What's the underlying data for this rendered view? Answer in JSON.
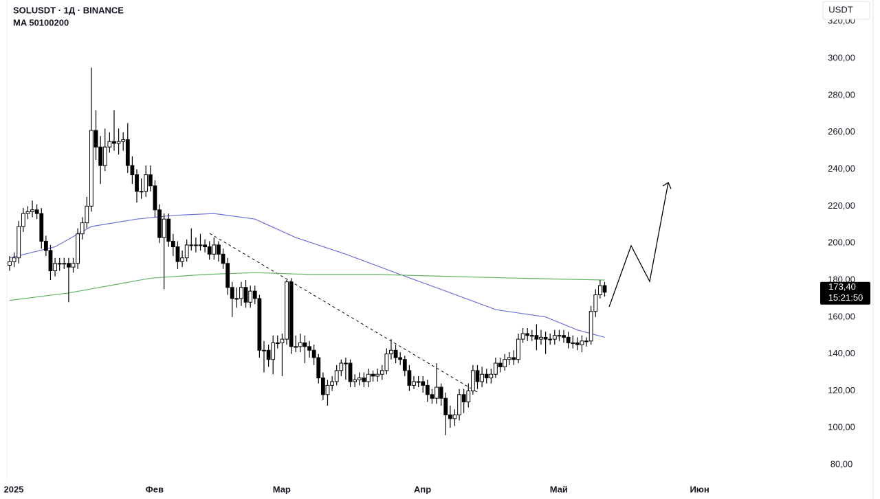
{
  "chart_data": {
    "type": "candlestick",
    "title": "SOLUSDT · 1Д · BINANCE",
    "subtitle": "MA 50100200",
    "currency": "USDT",
    "x": [
      0,
      1,
      2,
      3,
      4,
      5,
      6,
      7,
      8,
      9,
      10,
      11,
      12,
      13,
      14,
      15,
      16,
      17,
      18,
      19,
      20,
      21,
      22,
      23,
      24,
      25,
      26,
      27,
      28,
      29,
      30,
      31,
      32,
      33,
      34,
      35,
      36,
      37,
      38,
      39,
      40,
      41,
      42,
      43,
      44,
      45,
      46,
      47,
      48,
      49,
      50,
      51,
      52,
      53,
      54,
      55,
      56,
      57,
      58,
      59,
      60,
      61,
      62,
      63,
      64,
      65,
      66,
      67,
      68,
      69,
      70,
      71,
      72,
      73,
      74,
      75,
      76,
      77,
      78,
      79,
      80,
      81,
      82,
      83,
      84,
      85,
      86,
      87,
      88,
      89,
      90,
      91,
      92,
      93,
      94,
      95,
      96,
      97,
      98,
      99,
      100,
      101,
      102,
      103,
      104,
      105,
      106,
      107,
      108,
      109,
      110,
      111,
      112,
      113,
      114,
      115,
      116,
      117,
      118,
      119,
      120,
      121,
      122,
      123,
      124,
      125,
      126,
      127,
      128,
      129,
      130,
      131
    ],
    "open": [
      188,
      190,
      192,
      209,
      216,
      217,
      218,
      216,
      201,
      196,
      185,
      189,
      189,
      189,
      187,
      189,
      205,
      211,
      220,
      261,
      252,
      242,
      252,
      255,
      254,
      255,
      256,
      242,
      237,
      228,
      228,
      237,
      231,
      218,
      203,
      213,
      201,
      198,
      190,
      192,
      199,
      199,
      199,
      199,
      198,
      194,
      199,
      194,
      189,
      176,
      170,
      170,
      176,
      168,
      174,
      170,
      142,
      142,
      137,
      146,
      146,
      148,
      179,
      144,
      144,
      146,
      144,
      142,
      138,
      127,
      118,
      123,
      125,
      131,
      135,
      135,
      125,
      126,
      127,
      125,
      129,
      128,
      129,
      131,
      140,
      142,
      138,
      137,
      131,
      123,
      125,
      125,
      123,
      118,
      116,
      122,
      116,
      107,
      105,
      107,
      118,
      114,
      120,
      131,
      125,
      129,
      127,
      129,
      135,
      133,
      137,
      138,
      137,
      148,
      151,
      150,
      150,
      148,
      149,
      148,
      148,
      150,
      150,
      149,
      146,
      146,
      145,
      147,
      147,
      163,
      172,
      177
    ],
    "high": [
      193,
      195,
      212,
      219,
      220,
      223,
      221,
      219,
      204,
      199,
      192,
      192,
      192,
      192,
      192,
      208,
      214,
      225,
      295,
      272,
      258,
      262,
      260,
      272,
      262,
      260,
      265,
      247,
      240,
      235,
      242,
      242,
      234,
      221,
      216,
      216,
      205,
      201,
      196,
      202,
      208,
      203,
      205,
      202,
      201,
      203,
      201,
      197,
      192,
      179,
      176,
      179,
      180,
      177,
      177,
      172,
      147,
      145,
      150,
      150,
      151,
      180,
      181,
      150,
      151,
      150,
      147,
      145,
      140,
      130,
      126,
      128,
      134,
      137,
      138,
      137,
      129,
      130,
      130,
      132,
      131,
      132,
      134,
      143,
      148,
      145,
      141,
      139,
      134,
      128,
      128,
      128,
      126,
      121,
      135,
      124,
      119,
      112,
      110,
      121,
      121,
      124,
      134,
      134,
      133,
      132,
      132,
      138,
      138,
      140,
      141,
      142,
      151,
      154,
      154,
      153,
      156,
      153,
      152,
      151,
      153,
      153,
      153,
      152,
      150,
      149,
      150,
      149,
      166,
      175,
      180,
      179
    ],
    "low": [
      185,
      187,
      189,
      206,
      213,
      214,
      213,
      197,
      193,
      180,
      182,
      185,
      186,
      168,
      184,
      186,
      202,
      208,
      217,
      245,
      232,
      239,
      249,
      250,
      248,
      250,
      238,
      232,
      222,
      224,
      225,
      228,
      214,
      200,
      175,
      198,
      193,
      186,
      187,
      190,
      196,
      195,
      196,
      195,
      191,
      191,
      190,
      186,
      172,
      160,
      165,
      166,
      165,
      165,
      167,
      138,
      130,
      133,
      129,
      143,
      128,
      145,
      140,
      141,
      141,
      135,
      138,
      134,
      124,
      115,
      112,
      120,
      123,
      128,
      126,
      122,
      122,
      123,
      122,
      122,
      125,
      125,
      126,
      129,
      137,
      135,
      134,
      128,
      120,
      121,
      122,
      119,
      114,
      113,
      113,
      112,
      96,
      100,
      101,
      104,
      108,
      111,
      118,
      121,
      122,
      124,
      124,
      127,
      130,
      131,
      134,
      134,
      135,
      146,
      147,
      147,
      142,
      145,
      140,
      145,
      145,
      147,
      146,
      143,
      143,
      142,
      141,
      144,
      145,
      160,
      170,
      171
    ],
    "close": [
      190,
      192,
      209,
      216,
      217,
      218,
      216,
      201,
      196,
      185,
      189,
      189,
      189,
      187,
      189,
      205,
      211,
      220,
      261,
      252,
      242,
      252,
      255,
      254,
      255,
      256,
      242,
      237,
      228,
      228,
      237,
      231,
      218,
      203,
      213,
      201,
      198,
      190,
      192,
      199,
      199,
      199,
      199,
      198,
      194,
      199,
      194,
      189,
      176,
      170,
      170,
      176,
      168,
      174,
      170,
      142,
      142,
      137,
      146,
      146,
      148,
      179,
      144,
      144,
      146,
      144,
      142,
      138,
      127,
      118,
      123,
      125,
      131,
      135,
      135,
      125,
      126,
      127,
      125,
      129,
      128,
      129,
      131,
      140,
      142,
      138,
      137,
      131,
      123,
      125,
      125,
      123,
      118,
      116,
      122,
      116,
      107,
      105,
      107,
      118,
      114,
      120,
      131,
      125,
      129,
      127,
      129,
      135,
      133,
      137,
      138,
      137,
      148,
      151,
      150,
      150,
      148,
      149,
      148,
      148,
      150,
      150,
      149,
      146,
      146,
      145,
      147,
      147,
      163,
      172,
      177,
      173.4
    ],
    "up_color": "#ffffff",
    "down_color": "#000000",
    "overlays": [
      {
        "color": "#6b6fdc",
        "x": [
          0,
          10,
          18,
          28,
          36,
          45,
          54,
          63,
          74,
          86,
          96,
          107,
          118,
          125,
          131
        ],
        "values": [
          192,
          198,
          209,
          213,
          215,
          216,
          213,
          203,
          194,
          183,
          174,
          164,
          160,
          153,
          149
        ]
      },
      {
        "color": "#62b462",
        "x": [
          0,
          13,
          22,
          31,
          43,
          54,
          66,
          81,
          96,
          112,
          131
        ],
        "values": [
          169,
          173,
          177,
          181,
          183,
          184,
          183,
          183,
          182,
          181,
          180
        ]
      }
    ],
    "xlim": [
      -2,
      178
    ],
    "ylim": [
      71.5,
      331.6
    ],
    "xticks": [
      {
        "value": 0,
        "label": "2025"
      },
      {
        "value": 31,
        "label": "Фев"
      },
      {
        "value": 59,
        "label": "Мар"
      },
      {
        "value": 90,
        "label": "Апр"
      },
      {
        "value": 120,
        "label": "Май"
      },
      {
        "value": 151,
        "label": "Июн"
      }
    ],
    "yticks": [
      {
        "value": 80,
        "label": "80,00"
      },
      {
        "value": 100,
        "label": "100,00"
      },
      {
        "value": 120,
        "label": "120,00"
      },
      {
        "value": 140,
        "label": "140,00"
      },
      {
        "value": 160,
        "label": "160,00"
      },
      {
        "value": 180,
        "label": "180,00"
      },
      {
        "value": 200,
        "label": "200,00"
      },
      {
        "value": 220,
        "label": "220,00"
      },
      {
        "value": 240,
        "label": "240,00"
      },
      {
        "value": 260,
        "label": "260,00"
      },
      {
        "value": 280,
        "label": "280,00"
      },
      {
        "value": 300,
        "label": "300,00"
      },
      {
        "value": 320,
        "label": "320,00"
      }
    ],
    "last_price": {
      "value": 173.4,
      "label": "173,40"
    },
    "countdown": "15:21:50"
  }
}
